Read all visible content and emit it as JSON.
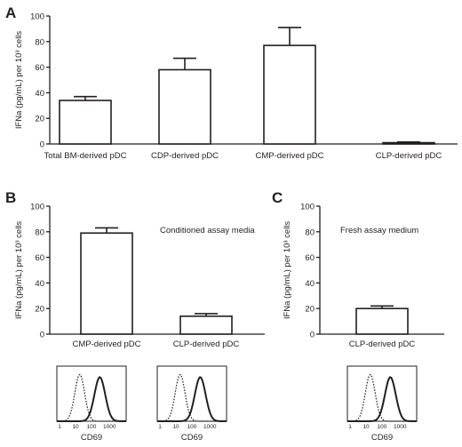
{
  "panels": {
    "A": {
      "label": "A"
    },
    "B": {
      "label": "B",
      "annotation": "Conditioned assay media"
    },
    "C": {
      "label": "C",
      "annotation": "Fresh assay medium"
    }
  },
  "y_axis_label": "IFNa (pg/mL) per 10³ cells",
  "histogram": {
    "xlabel": "CD69",
    "ticks": [
      "1",
      "10",
      "100",
      "1000"
    ]
  },
  "chart_data": [
    {
      "panel": "A",
      "type": "bar",
      "categories": [
        "Total BM-derived pDC",
        "CDP-derived pDC",
        "CMP-derived  pDC",
        "CLP-derived pDC"
      ],
      "values": [
        34,
        58,
        77,
        1
      ],
      "errors": [
        3,
        9,
        14,
        0.5
      ],
      "ylabel": "IFNa (pg/mL) per 10³ cells",
      "ylim": [
        0,
        100
      ],
      "yticks": [
        0,
        20,
        40,
        60,
        80,
        100
      ],
      "grid": false
    },
    {
      "panel": "B",
      "type": "bar",
      "categories": [
        "CMP-derived pDC",
        "CLP-derived pDC"
      ],
      "values": [
        79,
        14
      ],
      "errors": [
        4,
        2
      ],
      "ylabel": "IFNa (pg/mL) per 10³ cells",
      "ylim": [
        0,
        100
      ],
      "yticks": [
        0,
        20,
        40,
        60,
        80,
        100
      ],
      "grid": false
    },
    {
      "panel": "C",
      "type": "bar",
      "categories": [
        "CLP-derived pDC"
      ],
      "values": [
        20
      ],
      "errors": [
        2
      ],
      "ylabel": "IFNa (pg/mL) per 10³ cells",
      "ylim": [
        0,
        100
      ],
      "yticks": [
        0,
        20,
        40,
        60,
        80,
        100
      ],
      "grid": false
    }
  ]
}
